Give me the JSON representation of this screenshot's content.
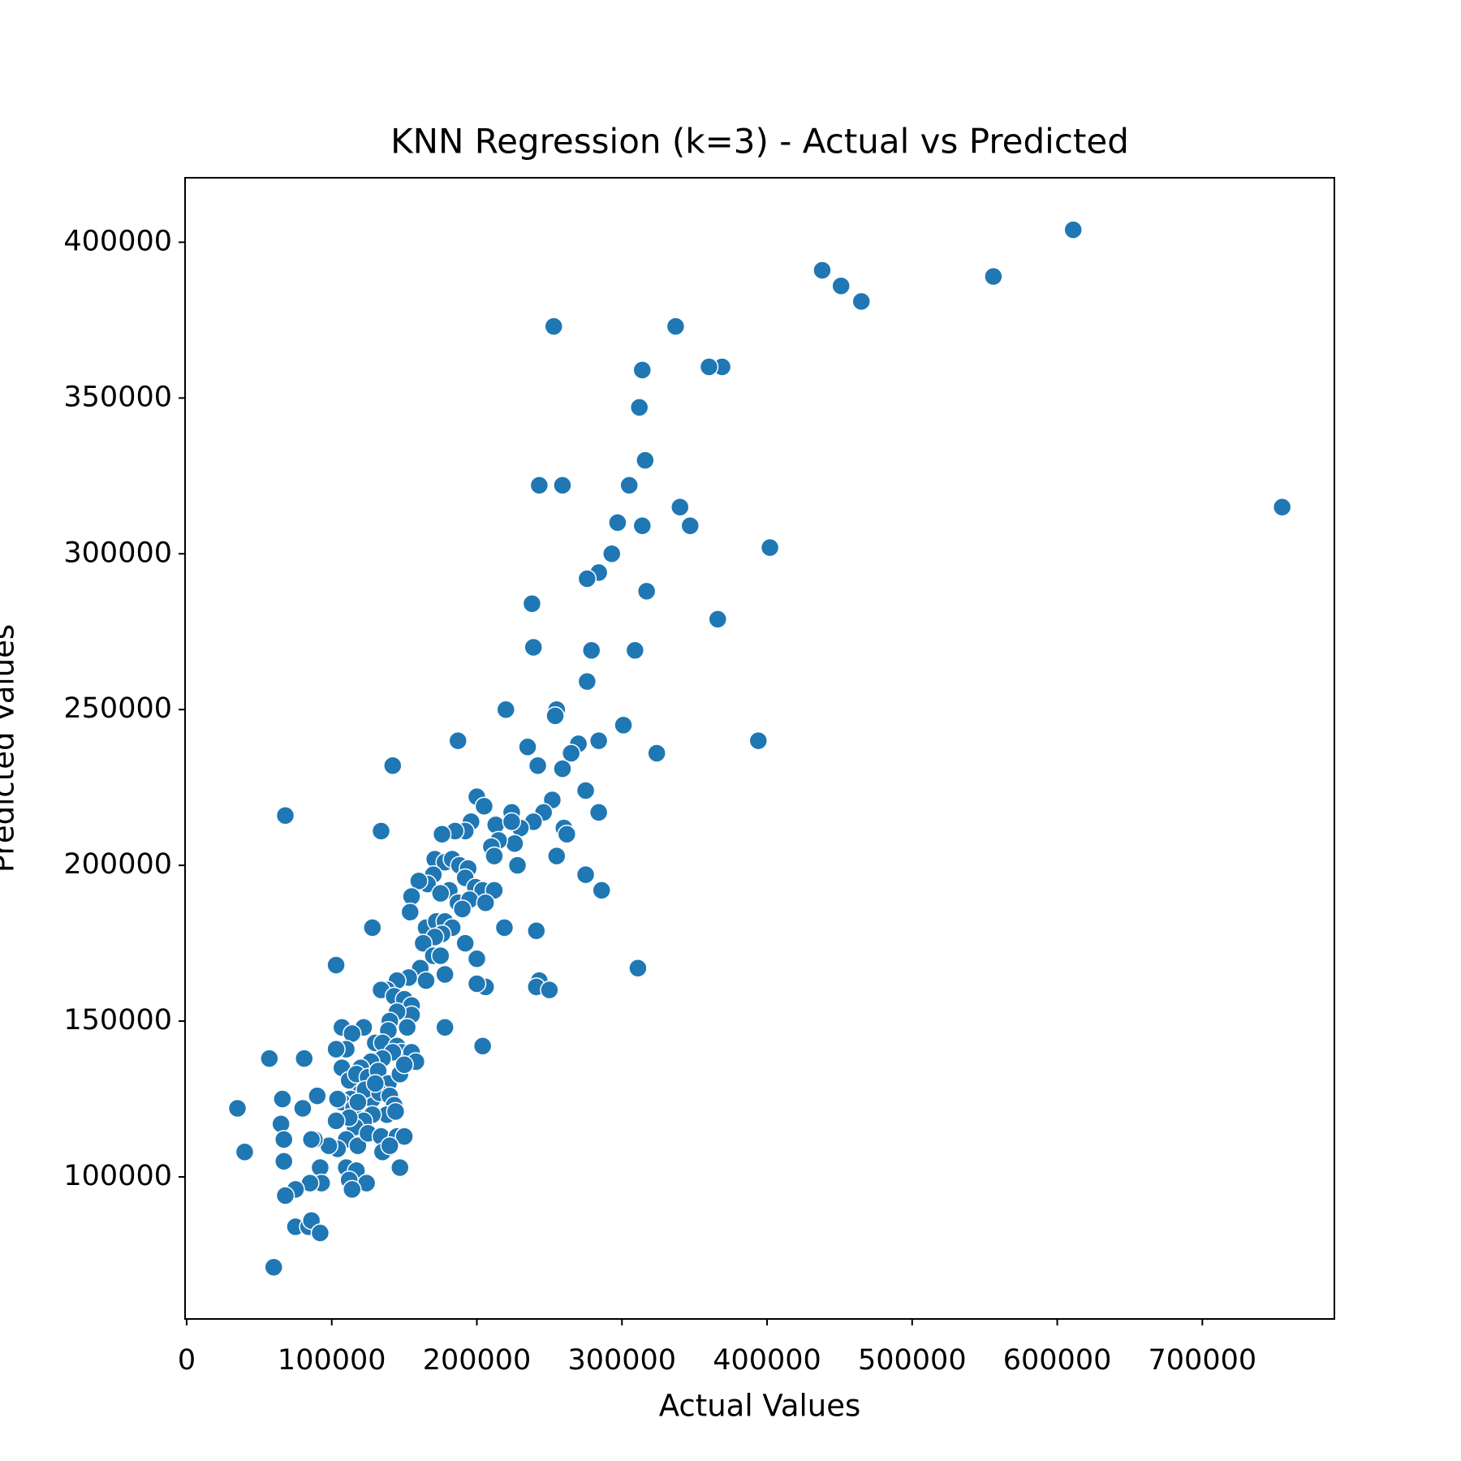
{
  "chart_data": {
    "type": "scatter",
    "title": "KNN Regression (k=3) - Actual vs Predicted",
    "x_label": "Actual Values",
    "y_label": "Predicted Values",
    "color": "#1f77b4",
    "xlim": [
      -1100,
      791000
    ],
    "ylim": [
      54400,
      420700
    ],
    "xticks": [
      0,
      100000,
      200000,
      300000,
      400000,
      500000,
      600000,
      700000
    ],
    "yticks": [
      100000,
      150000,
      200000,
      250000,
      300000,
      350000,
      400000
    ],
    "x": [
      611000,
      438000,
      451000,
      465000,
      556000,
      755000,
      402000,
      394000,
      366000,
      369000,
      360000,
      337000,
      253000,
      314000,
      312000,
      316000,
      340000,
      347000,
      314000,
      305000,
      297000,
      293000,
      284000,
      276000,
      243000,
      259000,
      238000,
      239000,
      279000,
      309000,
      317000,
      276000,
      220000,
      255000,
      254000,
      301000,
      324000,
      284000,
      270000,
      265000,
      235000,
      242000,
      259000,
      187000,
      142000,
      68000,
      134000,
      275000,
      284000,
      252000,
      260000,
      262000,
      255000,
      275000,
      286000,
      241000,
      219000,
      311000,
      243000,
      241000,
      250000,
      204000,
      206000,
      200000,
      200000,
      192000,
      178000,
      128000,
      103000,
      200000,
      205000,
      224000,
      246000,
      239000,
      230000,
      213000,
      224000,
      226000,
      215000,
      210000,
      212000,
      228000,
      196000,
      192000,
      185000,
      176000,
      171000,
      178000,
      183000,
      188000,
      194000,
      170000,
      166000,
      160000,
      192000,
      199000,
      204000,
      212000,
      181000,
      175000,
      187000,
      195000,
      206000,
      190000,
      155000,
      154000,
      165000,
      172000,
      178000,
      183000,
      176000,
      171000,
      163000,
      170000,
      175000,
      178000,
      161000,
      165000,
      153000,
      145000,
      138000,
      134000,
      143000,
      150000,
      155000,
      155000,
      145000,
      140000,
      152000,
      139000,
      107000,
      122000,
      114000,
      130000,
      135000,
      145000,
      148000,
      155000,
      158000,
      142000,
      135000,
      127000,
      120000,
      110000,
      103000,
      107000,
      112000,
      117000,
      125000,
      132000,
      139000,
      147000,
      150000,
      128000,
      120000,
      113000,
      107000,
      104000,
      115000,
      123000,
      133000,
      140000,
      143000,
      138000,
      128000,
      122000,
      116000,
      112000,
      103000,
      110000,
      118000,
      125000,
      134000,
      145000,
      150000,
      144000,
      135000,
      140000,
      110000,
      117000,
      124000,
      112000,
      114000,
      104000,
      98000,
      92000,
      93000,
      85000,
      75000,
      88000,
      86000,
      80000,
      90000,
      66000,
      65000,
      67000,
      67000,
      68000,
      57000,
      81000,
      75000,
      84000,
      86000,
      92000,
      60000,
      35000,
      40000,
      147000,
      130000,
      118000
    ],
    "values": [
      404000,
      391000,
      386000,
      381000,
      389000,
      315000,
      302000,
      240000,
      279000,
      360000,
      360000,
      373000,
      373000,
      359000,
      347000,
      330000,
      315000,
      309000,
      309000,
      322000,
      310000,
      300000,
      294000,
      292000,
      322000,
      322000,
      284000,
      270000,
      269000,
      269000,
      288000,
      259000,
      250000,
      250000,
      248000,
      245000,
      236000,
      240000,
      239000,
      236000,
      238000,
      232000,
      231000,
      240000,
      232000,
      216000,
      211000,
      224000,
      217000,
      221000,
      212000,
      210000,
      203000,
      197000,
      192000,
      179000,
      180000,
      167000,
      163000,
      161000,
      160000,
      142000,
      161000,
      162000,
      170000,
      175000,
      148000,
      180000,
      168000,
      222000,
      219000,
      217000,
      217000,
      214000,
      212000,
      213000,
      214000,
      207000,
      208000,
      206000,
      203000,
      200000,
      214000,
      211000,
      211000,
      210000,
      202000,
      201000,
      202000,
      200000,
      199000,
      197000,
      194000,
      195000,
      196000,
      193000,
      192000,
      192000,
      192000,
      191000,
      188000,
      189000,
      188000,
      186000,
      190000,
      185000,
      180000,
      182000,
      182000,
      180000,
      178000,
      177000,
      175000,
      171000,
      171000,
      165000,
      167000,
      163000,
      164000,
      163000,
      160000,
      160000,
      158000,
      157000,
      155000,
      152000,
      153000,
      150000,
      148000,
      147000,
      148000,
      148000,
      146000,
      143000,
      143000,
      142000,
      140000,
      140000,
      137000,
      140000,
      138000,
      137000,
      135000,
      141000,
      141000,
      135000,
      131000,
      133000,
      132000,
      134000,
      130000,
      133000,
      136000,
      125000,
      127000,
      125000,
      124000,
      125000,
      122000,
      128000,
      127000,
      126000,
      123000,
      120000,
      120000,
      118000,
      116000,
      119000,
      118000,
      112000,
      110000,
      114000,
      113000,
      113000,
      113000,
      121000,
      108000,
      110000,
      103000,
      102000,
      98000,
      99000,
      96000,
      109000,
      110000,
      103000,
      98000,
      98000,
      96000,
      112000,
      112000,
      122000,
      126000,
      125000,
      117000,
      112000,
      105000,
      94000,
      138000,
      138000,
      84000,
      84000,
      86000,
      82000,
      71000,
      122000,
      108000,
      103000,
      130000,
      124000
    ]
  }
}
